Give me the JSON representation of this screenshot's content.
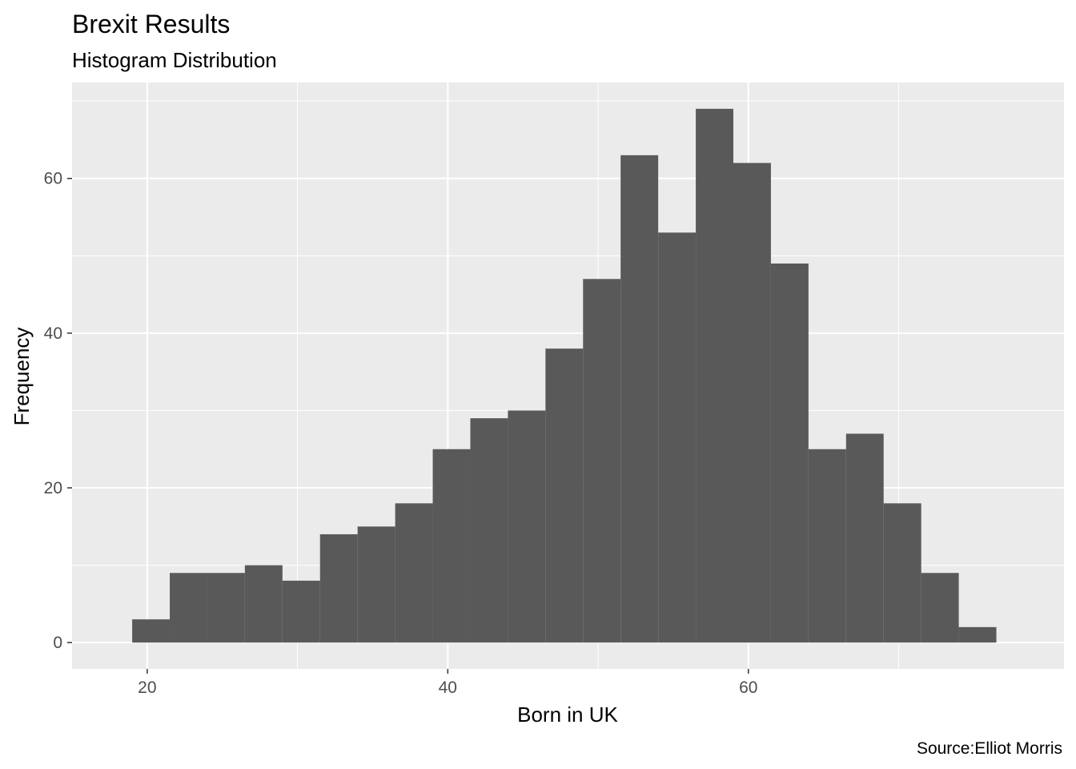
{
  "chart_data": {
    "type": "bar",
    "title": "Brexit Results",
    "subtitle": "Histogram Distribution",
    "xlabel": "Born in UK",
    "ylabel": "Frequency",
    "caption": "Source:Elliot Morris",
    "bins": [
      {
        "x0": 19.0,
        "x1": 21.5,
        "count": 3
      },
      {
        "x0": 21.5,
        "x1": 24.0,
        "count": 9
      },
      {
        "x0": 24.0,
        "x1": 26.5,
        "count": 9
      },
      {
        "x0": 26.5,
        "x1": 29.0,
        "count": 10
      },
      {
        "x0": 29.0,
        "x1": 31.5,
        "count": 8
      },
      {
        "x0": 31.5,
        "x1": 34.0,
        "count": 14
      },
      {
        "x0": 34.0,
        "x1": 36.5,
        "count": 15
      },
      {
        "x0": 36.5,
        "x1": 39.0,
        "count": 18
      },
      {
        "x0": 39.0,
        "x1": 41.5,
        "count": 25
      },
      {
        "x0": 41.5,
        "x1": 44.0,
        "count": 29
      },
      {
        "x0": 44.0,
        "x1": 46.5,
        "count": 30
      },
      {
        "x0": 46.5,
        "x1": 49.0,
        "count": 38
      },
      {
        "x0": 49.0,
        "x1": 51.5,
        "count": 47
      },
      {
        "x0": 51.5,
        "x1": 54.0,
        "count": 63
      },
      {
        "x0": 54.0,
        "x1": 56.5,
        "count": 53
      },
      {
        "x0": 56.5,
        "x1": 59.0,
        "count": 69
      },
      {
        "x0": 59.0,
        "x1": 61.5,
        "count": 62
      },
      {
        "x0": 61.5,
        "x1": 64.0,
        "count": 49
      },
      {
        "x0": 64.0,
        "x1": 66.5,
        "count": 25
      },
      {
        "x0": 66.5,
        "x1": 69.0,
        "count": 27
      },
      {
        "x0": 69.0,
        "x1": 71.5,
        "count": 18
      },
      {
        "x0": 71.5,
        "x1": 74.0,
        "count": 9
      },
      {
        "x0": 74.0,
        "x1": 76.5,
        "count": 2
      }
    ],
    "xlim": [
      15,
      81
    ],
    "ylim": [
      -3.4,
      72.4
    ],
    "x_ticks": [
      20,
      40,
      60
    ],
    "x_minor_ticks": [
      30,
      50,
      70
    ],
    "y_ticks": [
      0,
      20,
      40,
      60
    ],
    "y_minor_ticks": [
      10,
      30,
      50,
      70
    ],
    "grid": true,
    "colors": {
      "bar": "#595959",
      "panel": "#ebebeb",
      "grid": "#ffffff",
      "tick_label": "#4d4d4d",
      "tick_mark": "#333333"
    }
  }
}
